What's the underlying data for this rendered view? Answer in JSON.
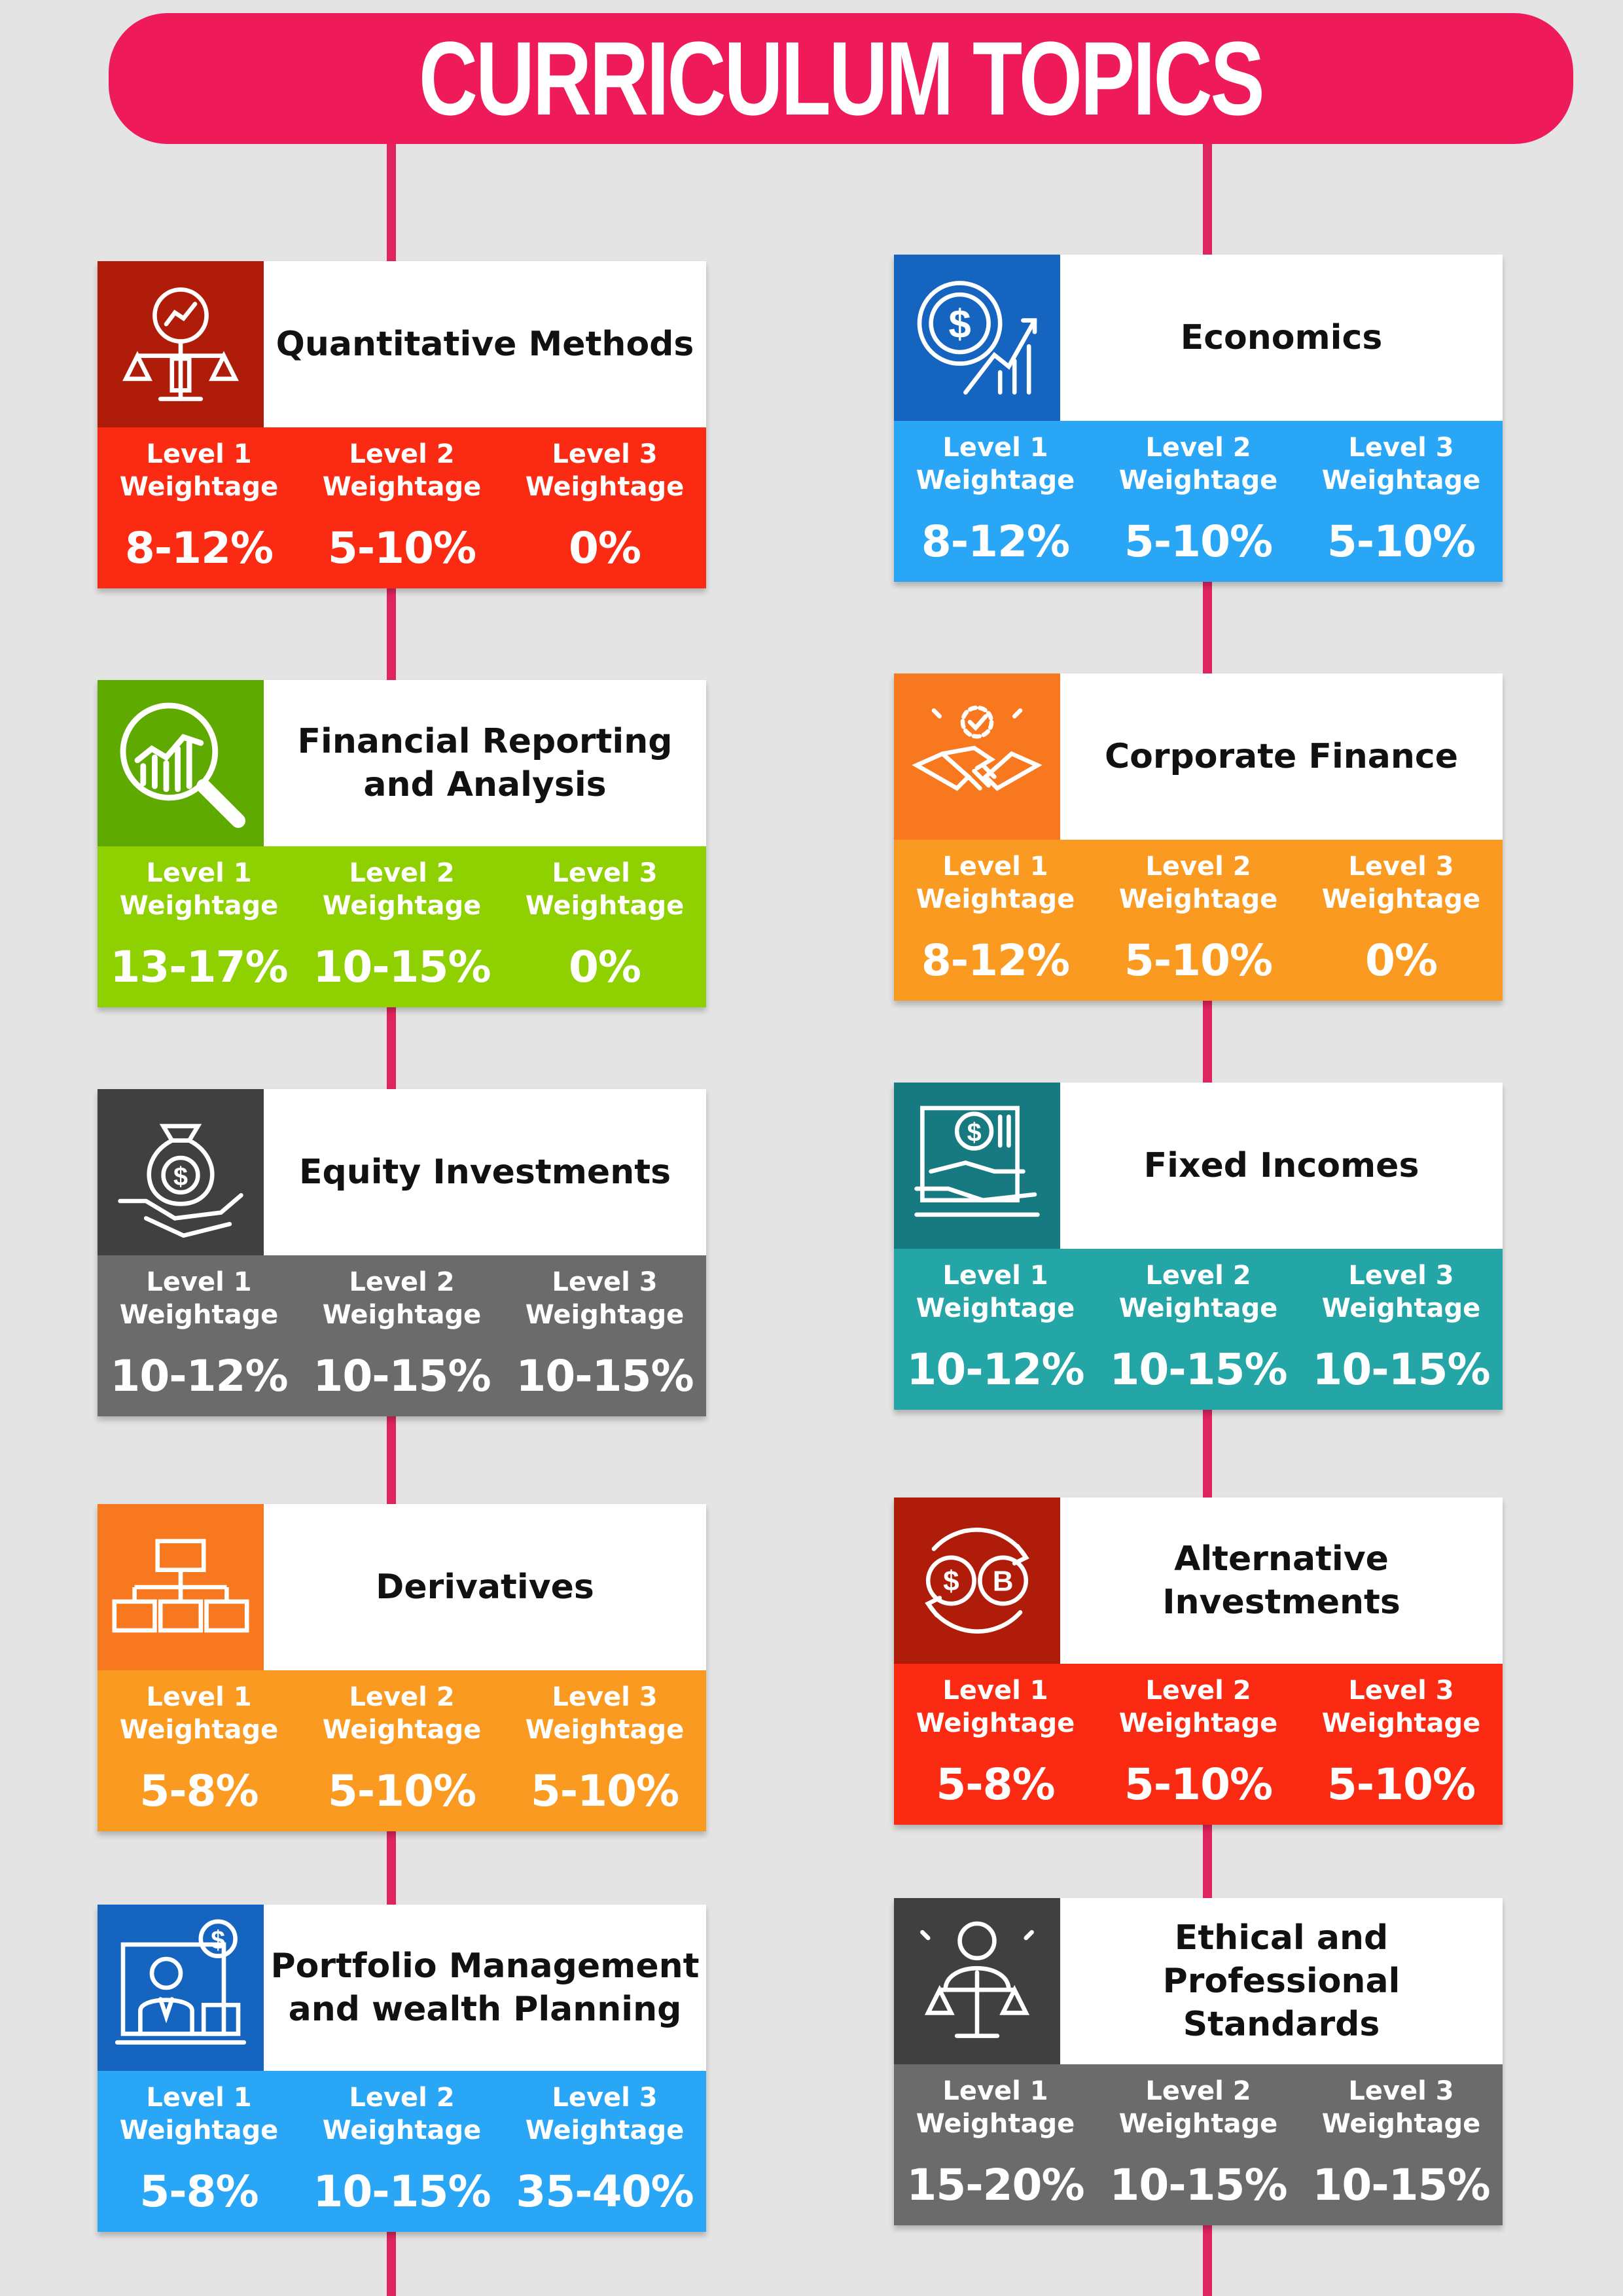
{
  "title": "CURRICULUM TOPICS",
  "level_labels": {
    "l1a": "Level 1",
    "l1b": "Weightage",
    "l2a": "Level 2",
    "l2b": "Weightage",
    "l3a": "Level 3",
    "l3b": "Weightage"
  },
  "topics": [
    {
      "name": "Quantitative Methods",
      "icon": "scale-chart-icon",
      "icon_color": "#b01c0a",
      "band_color": "#fb2b13",
      "l1": "8-12%",
      "l2": "5-10%",
      "l3": "0%"
    },
    {
      "name": "Economics",
      "icon": "dollar-growth-icon",
      "icon_color": "#1565c0",
      "band_color": "#2aa6f7",
      "l1": "8-12%",
      "l2": "5-10%",
      "l3": "5-10%"
    },
    {
      "name": "Financial Reporting and Analysis",
      "icon": "magnifier-chart-icon",
      "icon_color": "#5faa00",
      "band_color": "#8fd000",
      "l1": "13-17%",
      "l2": "10-15%",
      "l3": "0%"
    },
    {
      "name": "Corporate Finance",
      "icon": "handshake-icon",
      "icon_color": "#f7781f",
      "band_color": "#fb9a21",
      "l1": "8-12%",
      "l2": "5-10%",
      "l3": "0%"
    },
    {
      "name": "Equity Investments",
      "icon": "money-bag-hand-icon",
      "icon_color": "#404040",
      "band_color": "#6b6b6b",
      "l1": "10-12%",
      "l2": "10-15%",
      "l3": "10-15%"
    },
    {
      "name": "Fixed Incomes",
      "icon": "dollar-hand-icon",
      "icon_color": "#167a80",
      "band_color": "#24a6a6",
      "l1": "10-12%",
      "l2": "10-15%",
      "l3": "10-15%"
    },
    {
      "name": "Derivatives",
      "icon": "hierarchy-icon",
      "icon_color": "#f7781f",
      "band_color": "#fb9a21",
      "l1": "5-8%",
      "l2": "5-10%",
      "l3": "5-10%"
    },
    {
      "name": "Alternative Investments",
      "icon": "currency-exchange-icon",
      "icon_color": "#b01c0a",
      "band_color": "#fb2b13",
      "l1": "5-8%",
      "l2": "5-10%",
      "l3": "5-10%"
    },
    {
      "name": "Portfolio Management and wealth Planning",
      "icon": "advisor-icon",
      "icon_color": "#1565c0",
      "band_color": "#2aa6f7",
      "l1": "5-8%",
      "l2": "10-15%",
      "l3": "35-40%"
    },
    {
      "name": "Ethical and Professional Standards",
      "icon": "person-scale-icon",
      "icon_color": "#404040",
      "band_color": "#6b6b6b",
      "l1": "15-20%",
      "l2": "10-15%",
      "l3": "10-15%"
    }
  ]
}
